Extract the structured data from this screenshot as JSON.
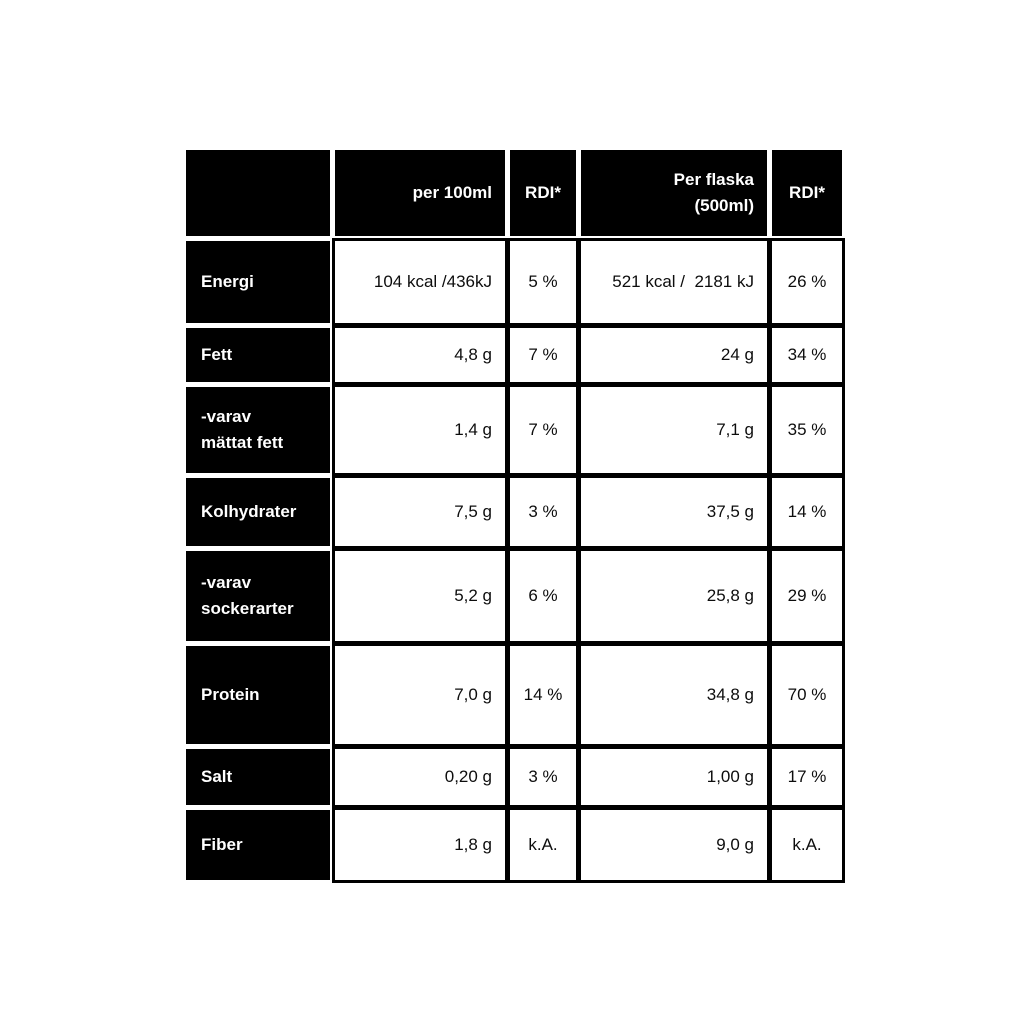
{
  "table": {
    "header": [
      {
        "name": "corner",
        "label": "",
        "align": "left"
      },
      {
        "name": "per-100ml",
        "label": "per 100ml",
        "align": "right"
      },
      {
        "name": "rdi-100ml",
        "label": "RDI*",
        "align": "center"
      },
      {
        "name": "per-flaska",
        "label": "Per flaska\n(500ml)",
        "align": "right"
      },
      {
        "name": "rdi-flaska",
        "label": "RDI*",
        "align": "center"
      }
    ],
    "value_aligns": [
      "right",
      "center",
      "right",
      "center"
    ],
    "rows": [
      {
        "name": "energi",
        "label": "Energi",
        "values": [
          "104 kcal /436kJ",
          "5 %",
          "521 kcal /  2181 kJ",
          "26 %"
        ]
      },
      {
        "name": "fett",
        "label": "Fett",
        "values": [
          "4,8 g",
          "7 %",
          "24 g",
          "34 %"
        ]
      },
      {
        "name": "varav-mattat-fett",
        "label": "-varav\nmättat fett",
        "values": [
          "1,4 g",
          "7 %",
          "7,1 g",
          "35 %"
        ]
      },
      {
        "name": "kolhydrater",
        "label": "Kolhydrater",
        "values": [
          "7,5 g",
          "3 %",
          "37,5 g",
          "14 %"
        ]
      },
      {
        "name": "varav-sockerarter",
        "label": "-varav\nsockerarter",
        "values": [
          "5,2 g",
          "6 %",
          "25,8 g",
          "29 %"
        ]
      },
      {
        "name": "protein",
        "label": "Protein",
        "values": [
          "7,0 g",
          "14 %",
          "34,8 g",
          "70 %"
        ]
      },
      {
        "name": "salt",
        "label": "Salt",
        "values": [
          "0,20 g",
          "3 %",
          "1,00 g",
          "17 %"
        ]
      },
      {
        "name": "fiber",
        "label": "Fiber",
        "values": [
          "1,8 g",
          "k.A.",
          "9,0 g",
          "k.A."
        ]
      }
    ]
  },
  "colors": {
    "page_bg": "#ffffff",
    "block_bg": "#000000",
    "block_text": "#ffffff",
    "data_text": "#0d0d0d",
    "grid_line": "#000000"
  }
}
